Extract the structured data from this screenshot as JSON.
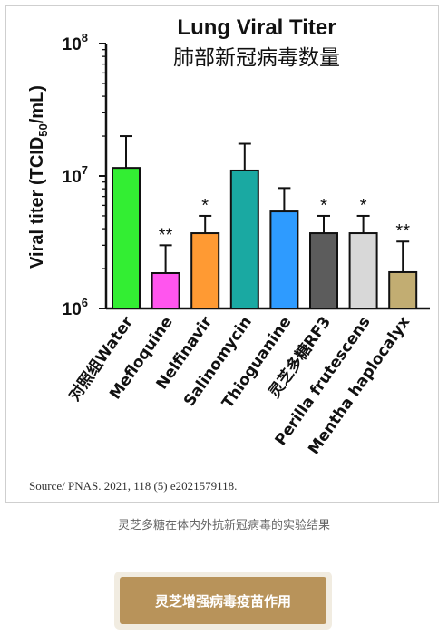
{
  "chart_data": {
    "type": "bar",
    "title": "Lung Viral Titer",
    "subtitle": "肺部新冠病毒数量",
    "ylabel": "Viral titer (TCID50/mL)",
    "yscale": "log",
    "ylim": [
      1000000,
      100000000
    ],
    "yticks": [
      {
        "value": 1000000,
        "base": "10",
        "exp": "6"
      },
      {
        "value": 10000000,
        "base": "10",
        "exp": "7"
      },
      {
        "value": 100000000,
        "base": "10",
        "exp": "8"
      }
    ],
    "categories": [
      "对照组Water",
      "Mefloquine",
      "Nelfinavir",
      "Salinomycin",
      "Thioguanine",
      "灵芝多糖RF3",
      "Perilla frutescens",
      "Mentha haplocalyx"
    ],
    "values": [
      11500000,
      1850000,
      3700000,
      11000000,
      5400000,
      3700000,
      3700000,
      1880000
    ],
    "error_upper": [
      20000000,
      3000000,
      5000000,
      17500000,
      8100000,
      5000000,
      5000000,
      3200000
    ],
    "significance": [
      "",
      "**",
      "*",
      "",
      "",
      "*",
      "*",
      "**"
    ],
    "colors": [
      "#33ee33",
      "#ff55ee",
      "#ff9a33",
      "#1aa9a2",
      "#2e9bff",
      "#5c5c5c",
      "#d8d8d8",
      "#c2ad72"
    ],
    "grid": false,
    "legend": "none"
  },
  "source_text": "Source/ PNAS. 2021, 118 (5) e2021579118.",
  "caption": "灵芝多糖在体内外抗新冠病毒的实验结果",
  "button": {
    "label": "灵芝增强病毒疫苗作用"
  }
}
